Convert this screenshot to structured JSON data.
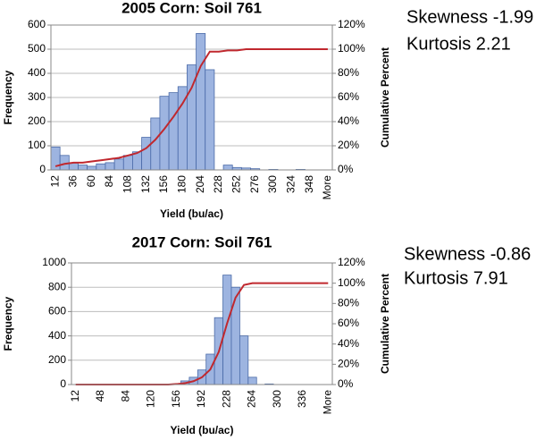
{
  "chart_data": [
    {
      "type": "bar",
      "title": "2005 Corn: Soil 761",
      "xlabel": "Yield (bu/ac)",
      "ylabel": "Frequency",
      "y2label": "Cumulative Percent",
      "annotations": [
        "Skewness -1.99",
        "Kurtosis 2.21"
      ],
      "categories": [
        "12",
        null,
        "36",
        null,
        "60",
        null,
        "84",
        null,
        "108",
        null,
        "132",
        null,
        "156",
        null,
        "180",
        null,
        "204",
        null,
        "228",
        null,
        "252",
        null,
        "276",
        null,
        "300",
        null,
        "324",
        null,
        "348",
        null,
        "More"
      ],
      "series": [
        {
          "type": "bar",
          "color": "#9db4e0",
          "values": [
            95,
            60,
            30,
            20,
            15,
            25,
            30,
            45,
            60,
            75,
            135,
            215,
            305,
            320,
            345,
            435,
            565,
            415,
            0,
            20,
            10,
            8,
            5,
            0,
            2,
            0,
            0,
            2,
            0,
            0,
            0
          ]
        },
        {
          "type": "line",
          "axis": "y2",
          "color": "#c0282e",
          "values": [
            3,
            5,
            6,
            6,
            7,
            8,
            9,
            10,
            12,
            14,
            18,
            25,
            34,
            44,
            55,
            68,
            86,
            98,
            98,
            99,
            99,
            100,
            100,
            100,
            100,
            100,
            100,
            100,
            100,
            100,
            100
          ]
        }
      ],
      "ylim": [
        0,
        600
      ],
      "yticks": [
        0,
        100,
        200,
        300,
        400,
        500,
        600
      ],
      "y2lim": [
        0,
        120
      ],
      "y2ticks": [
        {
          "value": 0,
          "label": "0%"
        },
        {
          "value": 20,
          "label": "20%"
        },
        {
          "value": 40,
          "label": "40%"
        },
        {
          "value": 60,
          "label": "60%"
        },
        {
          "value": 80,
          "label": "80%"
        },
        {
          "value": 100,
          "label": "100%"
        },
        {
          "value": 120,
          "label": "120%"
        }
      ],
      "grid": true
    },
    {
      "type": "bar",
      "title": "2017 Corn: Soil 761",
      "xlabel": "Yield (bu/ac)",
      "ylabel": "Frequency",
      "y2label": "Cumulative Percent",
      "annotations": [
        "Skewness -0.86",
        "Kurtosis 7.91"
      ],
      "categories": [
        "12",
        null,
        null,
        "48",
        null,
        null,
        "84",
        null,
        null,
        "120",
        null,
        null,
        "156",
        null,
        null,
        "192",
        null,
        null,
        "228",
        null,
        null,
        "264",
        null,
        null,
        "300",
        null,
        null,
        "336",
        null,
        null,
        "More"
      ],
      "series": [
        {
          "type": "bar",
          "color": "#9db4e0",
          "values": [
            0,
            0,
            0,
            0,
            0,
            0,
            0,
            0,
            0,
            0,
            0,
            0,
            5,
            30,
            60,
            120,
            250,
            550,
            900,
            800,
            400,
            60,
            0,
            5,
            0,
            0,
            0,
            0,
            0,
            0,
            0
          ]
        },
        {
          "type": "line",
          "axis": "y2",
          "color": "#c0282e",
          "values": [
            0,
            0,
            0,
            0,
            0,
            0,
            0,
            0,
            0,
            0,
            0,
            0,
            0.5,
            1.4,
            3.3,
            7.1,
            14.9,
            32.2,
            60.5,
            85.7,
            98.3,
            100,
            100,
            100,
            100,
            100,
            100,
            100,
            100,
            100,
            100
          ]
        }
      ],
      "ylim": [
        0,
        1000
      ],
      "yticks": [
        0,
        200,
        400,
        600,
        800,
        1000
      ],
      "y2lim": [
        0,
        120
      ],
      "y2ticks": [
        {
          "value": 0,
          "label": "0%"
        },
        {
          "value": 20,
          "label": "20%"
        },
        {
          "value": 40,
          "label": "40%"
        },
        {
          "value": 60,
          "label": "60%"
        },
        {
          "value": 80,
          "label": "80%"
        },
        {
          "value": 100,
          "label": "100%"
        },
        {
          "value": 120,
          "label": "120%"
        }
      ],
      "grid": true
    }
  ]
}
